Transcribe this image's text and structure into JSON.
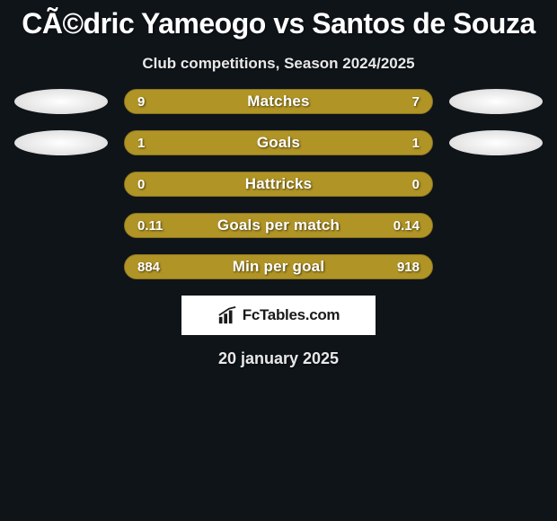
{
  "title": "CÃ©dric Yameogo vs Santos de Souza",
  "subtitle": "Club competitions, Season 2024/2025",
  "date": "20 january 2025",
  "branding": "FcTables.com",
  "colors": {
    "bar_base": "#b09425",
    "bar_border": "#8a7420",
    "fill_left": "#b09425",
    "fill_right": "#b09425",
    "background": "#0f1419",
    "text": "#ffffff",
    "ellipse": "#ffffff"
  },
  "rows": [
    {
      "label": "Matches",
      "left_val": "9",
      "right_val": "7",
      "left_pct": 56,
      "right_pct": 44,
      "show_ellipses": true
    },
    {
      "label": "Goals",
      "left_val": "1",
      "right_val": "1",
      "left_pct": 50,
      "right_pct": 50,
      "show_ellipses": true
    },
    {
      "label": "Hattricks",
      "left_val": "0",
      "right_val": "0",
      "left_pct": 50,
      "right_pct": 50,
      "show_ellipses": false
    },
    {
      "label": "Goals per match",
      "left_val": "0.11",
      "right_val": "0.14",
      "left_pct": 44,
      "right_pct": 56,
      "show_ellipses": false
    },
    {
      "label": "Min per goal",
      "left_val": "884",
      "right_val": "918",
      "left_pct": 49,
      "right_pct": 51,
      "show_ellipses": false
    }
  ]
}
